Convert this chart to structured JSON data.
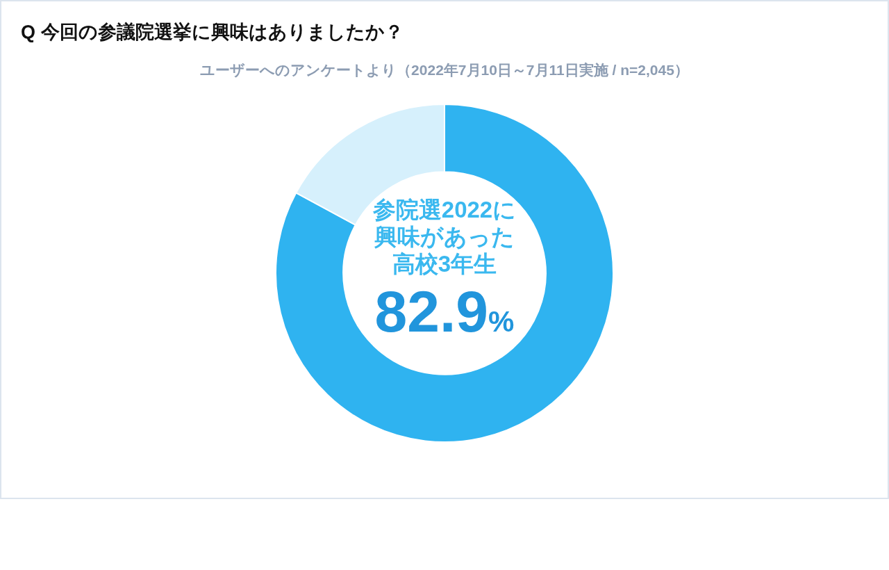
{
  "chart_data": {
    "type": "donut",
    "title": "Q 今回の参議院選挙に興味はありましたか？",
    "subtitle": "ユーザーへのアンケートより（2022年7月10日～7月11日実施 / n=2,045）",
    "categories": [
      "参院選2022に興味があった高校3年生",
      null
    ],
    "values": [
      82.9,
      17.1
    ],
    "colors": [
      "#2fb3f0",
      "#d6f0fc"
    ],
    "value_labels": [
      "82.9%",
      null
    ]
  }
}
